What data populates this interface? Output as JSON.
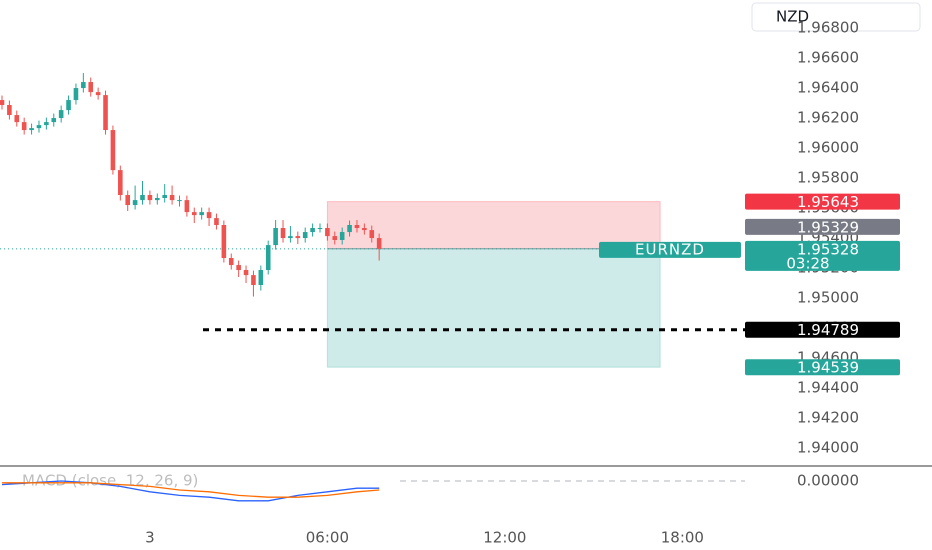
{
  "chart_data": [
    {
      "type": "candlestick",
      "currency": "NZD",
      "symbol": "EURNZD",
      "up_color": "#26a69a",
      "down_color": "#ef5350",
      "candles": [
        [
          1.9632,
          1.9635,
          1.96257,
          1.96287
        ],
        [
          1.96287,
          1.96317,
          1.9619,
          1.9622
        ],
        [
          1.9622,
          1.9625,
          1.96143,
          1.96173
        ],
        [
          1.96173,
          1.96203,
          1.9609,
          1.9612
        ],
        [
          1.9612,
          1.96163,
          1.9609,
          1.96133
        ],
        [
          1.96133,
          1.96183,
          1.96103,
          1.96153
        ],
        [
          1.96153,
          1.96203,
          1.96123,
          1.96173
        ],
        [
          1.96173,
          1.9623,
          1.96143,
          1.962
        ],
        [
          1.962,
          1.96283,
          1.9617,
          1.96253
        ],
        [
          1.96253,
          1.9635,
          1.96223,
          1.9632
        ],
        [
          1.9632,
          1.9643,
          1.9629,
          1.964
        ],
        [
          1.964,
          1.965,
          1.9637,
          1.9644
        ],
        [
          1.9644,
          1.9647,
          1.96343,
          1.96373
        ],
        [
          1.96373,
          1.96403,
          1.96323,
          1.96353
        ],
        [
          1.96353,
          1.96383,
          1.9609,
          1.9612
        ],
        [
          1.9612,
          1.9615,
          1.95823,
          1.95853
        ],
        [
          1.95853,
          1.95883,
          1.9565,
          1.95687
        ],
        [
          1.95687,
          1.95717,
          1.9558,
          1.9562
        ],
        [
          1.9562,
          1.9575,
          1.9559,
          1.95653
        ],
        [
          1.95653,
          1.9578,
          1.95623,
          1.95687
        ],
        [
          1.95687,
          1.95717,
          1.95623,
          1.95653
        ],
        [
          1.95653,
          1.95697,
          1.95623,
          1.95667
        ],
        [
          1.95667,
          1.9576,
          1.95637,
          1.95687
        ],
        [
          1.95687,
          1.9575,
          1.95623,
          1.95653
        ],
        [
          1.95653,
          1.95683,
          1.9561,
          1.95653
        ],
        [
          1.95653,
          1.95683,
          1.95543,
          1.95573
        ],
        [
          1.95573,
          1.95603,
          1.955,
          1.95553
        ],
        [
          1.95553,
          1.95603,
          1.95523,
          1.95573
        ],
        [
          1.95573,
          1.95603,
          1.9548,
          1.95533
        ],
        [
          1.95533,
          1.95563,
          1.95457,
          1.95487
        ],
        [
          1.95487,
          1.95517,
          1.95237,
          1.95267
        ],
        [
          1.95267,
          1.95297,
          1.9519,
          1.9522
        ],
        [
          1.9522,
          1.9525,
          1.9514,
          1.95187
        ],
        [
          1.95187,
          1.95217,
          1.951,
          1.95153
        ],
        [
          1.95153,
          1.95183,
          1.9501,
          1.95087
        ],
        [
          1.95087,
          1.95217,
          1.9505,
          1.95187
        ],
        [
          1.95187,
          1.95383,
          1.95157,
          1.95353
        ],
        [
          1.95353,
          1.9552,
          1.95323,
          1.95467
        ],
        [
          1.95467,
          1.9552,
          1.9537,
          1.954
        ],
        [
          1.954,
          1.9548,
          1.9537,
          1.95413
        ],
        [
          1.95413,
          1.95443,
          1.9536,
          1.954
        ],
        [
          1.954,
          1.9547,
          1.9537,
          1.9544
        ],
        [
          1.9544,
          1.95497,
          1.9541,
          1.95467
        ],
        [
          1.95467,
          1.95497,
          1.95437,
          1.95467
        ],
        [
          1.95467,
          1.95497,
          1.95383,
          1.95413
        ],
        [
          1.95413,
          1.95443,
          1.95357,
          1.95387
        ],
        [
          1.95387,
          1.9547,
          1.95357,
          1.9544
        ],
        [
          1.9544,
          1.95517,
          1.9541,
          1.95487
        ],
        [
          1.95487,
          1.9552,
          1.95437,
          1.95467
        ],
        [
          1.95467,
          1.95497,
          1.95423,
          1.95453
        ],
        [
          1.95453,
          1.95483,
          1.9537,
          1.954
        ],
        [
          1.954,
          1.9543,
          1.9525,
          1.95328
        ]
      ],
      "xlim": [
        -0.27,
        100.47
      ],
      "xticks": [
        {
          "value": 20,
          "label": "3"
        },
        {
          "value": 44,
          "label": "06:00"
        },
        {
          "value": 68,
          "label": "12:00"
        },
        {
          "value": 92,
          "label": "18:00"
        }
      ],
      "ylim": [
        1.93887,
        1.96987
      ],
      "yticks": [
        {
          "value": 1.94,
          "label": "1.94000"
        },
        {
          "value": 1.942,
          "label": "1.94200"
        },
        {
          "value": 1.944,
          "label": "1.94400"
        },
        {
          "value": 1.946,
          "label": "1.94600"
        },
        {
          "value": 1.948,
          "label": "1.94800"
        },
        {
          "value": 1.95,
          "label": "1.95000"
        },
        {
          "value": 1.952,
          "label": "1.95200"
        },
        {
          "value": 1.954,
          "label": "1.95400"
        },
        {
          "value": 1.956,
          "label": "1.95600"
        },
        {
          "value": 1.958,
          "label": "1.95800"
        },
        {
          "value": 1.96,
          "label": "1.96000"
        },
        {
          "value": 1.962,
          "label": "1.96200"
        },
        {
          "value": 1.964,
          "label": "1.96400"
        },
        {
          "value": 1.966,
          "label": "1.96600"
        },
        {
          "value": 1.968,
          "label": "1.96800"
        }
      ],
      "last_price": 1.95328,
      "last_color": "#26a69a",
      "countdown": "03:28",
      "price_marks": [
        {
          "value": 1.95643,
          "color": "#f23645"
        },
        {
          "value": 1.95329,
          "color": "#787b86"
        },
        {
          "value": 1.94789,
          "color": "#000000"
        },
        {
          "value": 1.94539,
          "color": "#26a69a"
        }
      ],
      "position": {
        "stop": 1.95643,
        "entry": 1.95329,
        "target": 1.94539,
        "start": 44,
        "end": 89
      }
    },
    {
      "type": "line",
      "title": "MACD (close, 12, 26, 9)",
      "x": [
        0,
        4,
        8,
        12,
        16,
        20,
        24,
        28,
        32,
        36,
        40,
        44,
        48,
        51
      ],
      "series": [
        {
          "color": "#2962ff",
          "values": [
            -0.0002,
            -0.0001,
            0.0,
            -0.0001,
            -0.0003,
            -0.0006,
            -0.0008,
            -0.0009,
            -0.0011,
            -0.0011,
            -0.0008,
            -0.0006,
            -0.0004,
            -0.0004
          ]
        },
        {
          "color": "#ff6d00",
          "values": [
            -0.0001,
            -0.0001,
            -0.0001,
            -0.0001,
            -0.0002,
            -0.0003,
            -0.0005,
            -0.0006,
            -0.0008,
            -0.0009,
            -0.0009,
            -0.0008,
            -0.0006,
            -0.0005
          ]
        }
      ],
      "xlim": [
        -0.27,
        100.47
      ],
      "ylim": [
        -0.002,
        0.0008
      ],
      "yticks": [
        {
          "value": 0,
          "label": "0.00000"
        }
      ]
    }
  ]
}
